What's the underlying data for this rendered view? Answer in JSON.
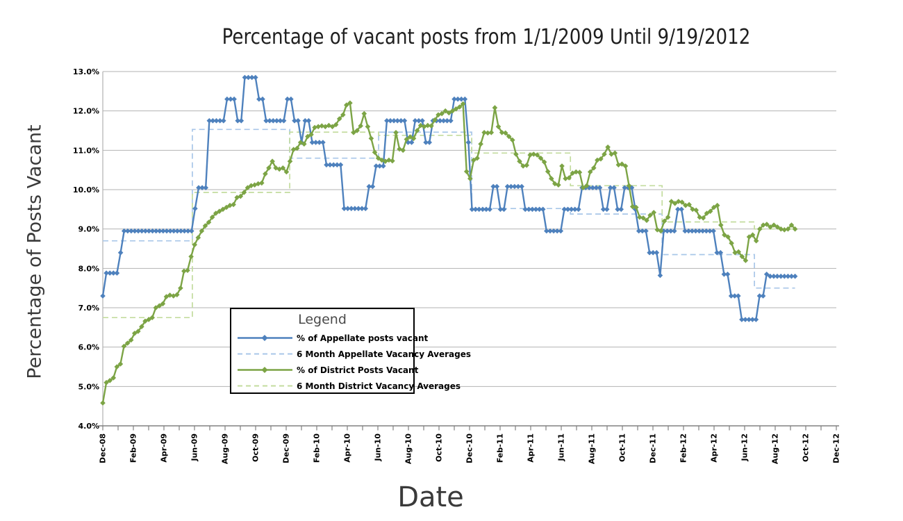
{
  "title": "Percentage of vacant posts from 1/1/2009 Until 9/19/2012",
  "x_axis": {
    "title": "Date",
    "tick_labels": [
      "Dec-08",
      "Feb-09",
      "Apr-09",
      "Jun-09",
      "Aug-09",
      "Oct-09",
      "Dec-09",
      "Feb-10",
      "Apr-10",
      "Jun-10",
      "Aug-10",
      "Oct-10",
      "Dec-10",
      "Feb-11",
      "Apr-11",
      "Jun-11",
      "Aug-11",
      "Oct-11",
      "Dec-11",
      "Feb-12",
      "Apr-12",
      "Jun-12",
      "Aug-12",
      "Oct-12",
      "Dec-12"
    ]
  },
  "y_axis": {
    "title": "Percentage of Posts Vacant",
    "tick_labels": [
      "4.0%",
      "5.0%",
      "6.0%",
      "7.0%",
      "8.0%",
      "9.0%",
      "10.0%",
      "11.0%",
      "12.0%",
      "13.0%"
    ],
    "min": 4.0,
    "max": 13.0
  },
  "legend": {
    "title": "Legend",
    "items": [
      {
        "label": "% of Appellate posts vacant",
        "color": "#4E81BD",
        "dashed": false,
        "marker": true
      },
      {
        "label": "6 Month Appellate Vacancy Averages",
        "color": "#A8C6E8",
        "dashed": true,
        "marker": false
      },
      {
        "label": "% of District Posts Vacant",
        "color": "#7CA445",
        "dashed": false,
        "marker": true
      },
      {
        "label": "6 Month District Vacancy Averages",
        "color": "#C3DC9E",
        "dashed": true,
        "marker": false
      }
    ]
  },
  "colors": {
    "appellate": "#4E81BD",
    "appellate_avg": "#A8C6E8",
    "district": "#7CA445",
    "district_avg": "#C3DC9E",
    "gridline": "#b2b2b2",
    "axis": "#808080",
    "tick_text": "#000000",
    "title_text": "#1f1f1f"
  },
  "chart_data": {
    "type": "line",
    "title": "Percentage of vacant posts from 1/1/2009 Until 9/19/2012",
    "xlabel": "Date",
    "ylabel": "Percentage of Posts Vacant",
    "ylim": [
      4.0,
      13.0
    ],
    "grid": "horizontal",
    "legend_position": "inside-lower-left",
    "x_unit": "months_since_Dec-08",
    "x_axis_range_months": [
      0,
      48
    ],
    "sampling": "weekly points; values_rle entries are [percent_value, run_length_weeks]",
    "series": [
      {
        "name": "% of Appellate posts vacant",
        "color": "#4E81BD",
        "style": "solid",
        "marker": "diamond",
        "t_start": 0,
        "t_end": 45.3,
        "values_rle": [
          [
            7.3,
            1
          ],
          [
            7.88,
            4
          ],
          [
            8.4,
            1
          ],
          [
            8.95,
            20
          ],
          [
            9.52,
            1
          ],
          [
            10.05,
            3
          ],
          [
            11.75,
            5
          ],
          [
            12.3,
            3
          ],
          [
            11.75,
            2
          ],
          [
            12.85,
            4
          ],
          [
            12.3,
            2
          ],
          [
            11.75,
            6
          ],
          [
            12.3,
            2
          ],
          [
            11.75,
            2
          ],
          [
            11.2,
            1
          ],
          [
            11.75,
            2
          ],
          [
            11.2,
            4
          ],
          [
            10.63,
            5
          ],
          [
            9.52,
            7
          ],
          [
            10.08,
            2
          ],
          [
            10.6,
            3
          ],
          [
            11.75,
            6
          ],
          [
            11.2,
            2
          ],
          [
            11.75,
            3
          ],
          [
            11.2,
            2
          ],
          [
            11.75,
            6
          ],
          [
            12.3,
            4
          ],
          [
            11.2,
            1
          ],
          [
            9.5,
            6
          ],
          [
            10.08,
            2
          ],
          [
            9.5,
            2
          ],
          [
            10.08,
            5
          ],
          [
            9.5,
            6
          ],
          [
            8.95,
            5
          ],
          [
            9.5,
            5
          ],
          [
            10.05,
            6
          ],
          [
            9.5,
            2
          ],
          [
            10.05,
            2
          ],
          [
            9.5,
            2
          ],
          [
            10.05,
            3
          ],
          [
            9.5,
            1
          ],
          [
            8.95,
            3
          ],
          [
            8.4,
            3
          ],
          [
            7.82,
            1
          ],
          [
            8.95,
            4
          ],
          [
            9.5,
            2
          ],
          [
            8.95,
            9
          ],
          [
            8.4,
            2
          ],
          [
            7.85,
            2
          ],
          [
            7.3,
            3
          ],
          [
            6.7,
            5
          ],
          [
            7.3,
            2
          ],
          [
            7.85,
            1
          ],
          [
            7.8,
            8
          ]
        ]
      },
      {
        "name": "6 Month Appellate Vacancy Averages",
        "color": "#A8C6E8",
        "style": "dashed-step",
        "boundaries_t": [
          0,
          5.86,
          12.23,
          18.05,
          24.14,
          30.6,
          36.6,
          42.64,
          45.3
        ],
        "segment_values": [
          8.7,
          11.53,
          10.8,
          11.46,
          9.52,
          9.38,
          8.35,
          7.5
        ]
      },
      {
        "name": "% of District Posts Vacant",
        "color": "#7CA445",
        "style": "solid",
        "marker": "diamond",
        "t_start": 0,
        "t_end": 45.3,
        "values": [
          4.58,
          5.1,
          5.15,
          5.22,
          5.5,
          5.57,
          6.02,
          6.1,
          6.18,
          6.35,
          6.4,
          6.52,
          6.66,
          6.7,
          6.75,
          7.0,
          7.05,
          7.1,
          7.28,
          7.32,
          7.3,
          7.33,
          7.5,
          7.93,
          7.95,
          8.3,
          8.6,
          8.78,
          8.95,
          9.08,
          9.17,
          9.3,
          9.4,
          9.45,
          9.5,
          9.55,
          9.6,
          9.62,
          9.8,
          9.83,
          9.93,
          10.05,
          10.1,
          10.12,
          10.15,
          10.17,
          10.4,
          10.55,
          10.72,
          10.55,
          10.52,
          10.55,
          10.45,
          10.72,
          11.02,
          11.05,
          11.2,
          11.16,
          11.35,
          11.4,
          11.58,
          11.6,
          11.62,
          11.6,
          11.63,
          11.6,
          11.65,
          11.8,
          11.9,
          12.15,
          12.2,
          11.45,
          11.5,
          11.62,
          11.93,
          11.6,
          11.3,
          10.95,
          10.8,
          10.75,
          10.72,
          10.75,
          10.73,
          11.45,
          11.03,
          11.0,
          11.28,
          11.34,
          11.3,
          11.5,
          11.63,
          11.6,
          11.63,
          11.62,
          11.77,
          11.9,
          11.93,
          12.0,
          11.95,
          12.0,
          12.05,
          12.1,
          12.18,
          10.46,
          10.28,
          10.75,
          10.8,
          11.16,
          11.45,
          11.44,
          11.45,
          12.08,
          11.6,
          11.45,
          11.44,
          11.35,
          11.26,
          10.9,
          10.72,
          10.6,
          10.62,
          10.88,
          10.9,
          10.88,
          10.8,
          10.7,
          10.46,
          10.28,
          10.15,
          10.12,
          10.6,
          10.28,
          10.3,
          10.42,
          10.45,
          10.44,
          10.05,
          10.1,
          10.45,
          10.55,
          10.75,
          10.78,
          10.9,
          11.08,
          10.9,
          10.93,
          10.63,
          10.65,
          10.6,
          10.1,
          9.57,
          9.55,
          9.3,
          9.28,
          9.22,
          9.35,
          9.42,
          8.98,
          8.95,
          9.2,
          9.3,
          9.7,
          9.65,
          9.7,
          9.68,
          9.6,
          9.62,
          9.5,
          9.48,
          9.3,
          9.28,
          9.4,
          9.45,
          9.55,
          9.6,
          9.1,
          8.85,
          8.8,
          8.64,
          8.4,
          8.42,
          8.3,
          8.2,
          8.8,
          8.85,
          8.7,
          9.0,
          9.1,
          9.12,
          9.05,
          9.1,
          9.05,
          9.0,
          8.98,
          9.0,
          9.1,
          9.0
        ]
      },
      {
        "name": "6 Month District Vacancy Averages",
        "color": "#C3DC9E",
        "style": "dashed-step",
        "boundaries_t": [
          0,
          5.86,
          12.23,
          18.05,
          24.14,
          30.6,
          36.6,
          42.64,
          45.3
        ],
        "segment_values": [
          6.75,
          9.93,
          11.46,
          11.38,
          10.93,
          10.1,
          9.18,
          9.0
        ]
      }
    ]
  }
}
